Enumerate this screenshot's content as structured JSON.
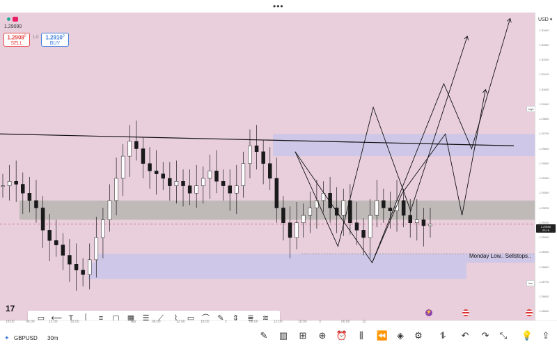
{
  "top": {
    "menu_dots": "•••"
  },
  "header": {
    "price": "1.29090"
  },
  "sell": {
    "price": "1.2908",
    "sup": "0",
    "label": "SELL"
  },
  "spread": "1.0",
  "buy": {
    "price": "1.2910",
    "sup": "0",
    "label": "BUY"
  },
  "currency": "USD",
  "annotations": {
    "high_tag": "high",
    "low_tag": "low",
    "monday_low": "Monday Low.. Sellstops.."
  },
  "current_price_tag": {
    "price": "1.29090",
    "time": "22:15"
  },
  "symbol": "GBPUSD",
  "timeframe": "30m",
  "logo_text": "17",
  "colors": {
    "background": "#e9cfdc",
    "gray_zone": "#b7b5b1",
    "blue_zone": "#c8c4ea",
    "candle": "#1a1a1a"
  },
  "icons": [
    "chat-icon",
    "horizontal-line-icon",
    "text-icon",
    "vertical-line-icon",
    "parallel-lines-icon",
    "rectangle-icon",
    "grid-icon",
    "fib-icon",
    "ray-icon",
    "polyline-icon",
    "note-icon",
    "brush-icon",
    "pen-icon",
    "measure-icon",
    "pattern-icon",
    "gann-icon"
  ],
  "bottom_icons": [
    "draw-icon",
    "indicators-icon",
    "layouts-icon",
    "add-icon",
    "alert-icon",
    "candles-icon",
    "replay-icon",
    "layers-icon",
    "settings-icon",
    "trend-icon",
    "undo-icon",
    "redo-icon",
    "collapse-icon",
    "bulb-icon",
    "share-icon"
  ],
  "chart_data": {
    "type": "candlestick",
    "symbol": "GBPUSD",
    "timeframe": "30m",
    "y_axis_ticks": [
      "1.30400",
      "1.30300",
      "1.30200",
      "1.30100",
      "1.30000",
      "1.29900",
      "1.29800",
      "1.29700",
      "1.29600",
      "1.29500",
      "1.29400",
      "1.29300",
      "1.29200",
      "1.29100",
      "1.29000",
      "1.28900",
      "1.28800",
      "1.28700",
      "1.28600",
      "1.28500"
    ],
    "x_axis_ticks": [
      "18:00",
      "06:00",
      "12:00",
      "18:00",
      "Apr",
      "06:00",
      "12:00",
      "18:00",
      "2",
      "06:00",
      "12:00",
      "18:00",
      "3",
      "06:00",
      "12"
    ],
    "ylim": [
      1.2844,
      1.3052
    ],
    "current_price": 1.2909,
    "resistance_line": {
      "start": 1.297,
      "end": 1.2962
    },
    "zones": [
      {
        "name": "gray",
        "from": 1.2912,
        "to": 1.2925
      },
      {
        "name": "blue-high",
        "from": 1.2955,
        "to": 1.297
      },
      {
        "name": "blue-low-upper",
        "from": 1.2883,
        "to": 1.2889
      },
      {
        "name": "blue-low-lower",
        "from": 1.2872,
        "to": 1.2883
      }
    ],
    "close_series": [
      1.2935,
      1.2938,
      1.2936,
      1.293,
      1.2925,
      1.292,
      1.2905,
      1.2898,
      1.2895,
      1.2888,
      1.2882,
      1.2878,
      1.2875,
      1.2885,
      1.29,
      1.2912,
      1.2925,
      1.294,
      1.2955,
      1.2965,
      1.296,
      1.295,
      1.2945,
      1.2943,
      1.294,
      1.2935,
      1.2938,
      1.2935,
      1.293,
      1.2935,
      1.294,
      1.2945,
      1.2938,
      1.2935,
      1.293,
      1.2935,
      1.295,
      1.2962,
      1.2958,
      1.295,
      1.294,
      1.292,
      1.291,
      1.29,
      1.291,
      1.2915,
      1.292,
      1.2925,
      1.293,
      1.292,
      1.2915,
      1.2925,
      1.291,
      1.2905,
      1.29,
      1.2915,
      1.2925,
      1.292,
      1.2918,
      1.2925,
      1.2915,
      1.291,
      1.2912,
      1.2908,
      1.2909
    ],
    "projection": [
      {
        "name": "path-a",
        "points": [
          [
            0.552,
            1.2958
          ],
          [
            0.632,
            1.2894
          ],
          [
            0.698,
            1.2988
          ],
          [
            0.768,
            1.2918
          ],
          [
            0.874,
            1.3036
          ]
        ]
      },
      {
        "name": "path-b",
        "points": [
          [
            0.552,
            1.2958
          ],
          [
            0.696,
            1.2883
          ],
          [
            0.752,
            1.293
          ],
          [
            0.833,
            1.297
          ],
          [
            0.864,
            1.2915
          ],
          [
            0.908,
            1.3
          ]
        ]
      },
      {
        "name": "path-c",
        "points": [
          [
            0.696,
            1.2883
          ],
          [
            0.83,
            1.3004
          ],
          [
            0.882,
            1.296
          ],
          [
            0.954,
            1.3048
          ]
        ]
      }
    ]
  }
}
